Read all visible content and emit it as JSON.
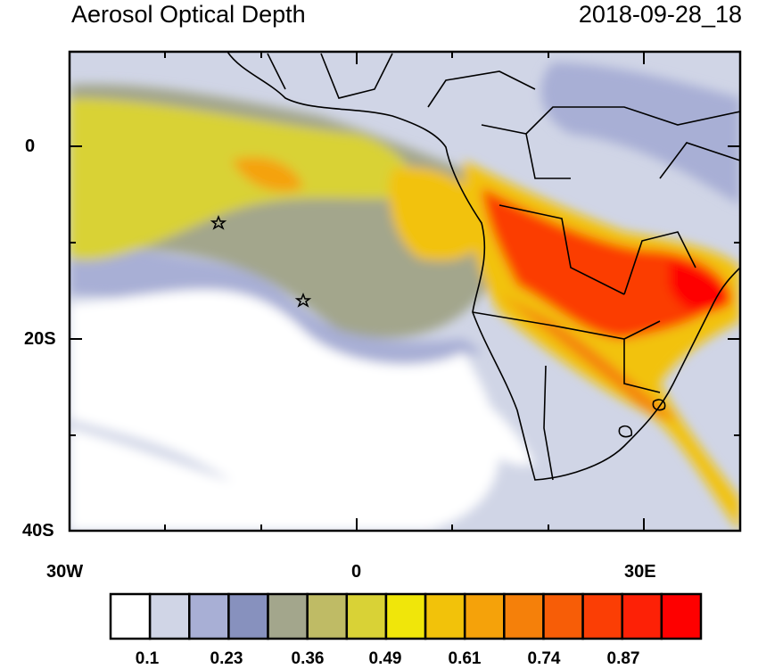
{
  "title_left": "Aerosol Optical Depth",
  "title_right": "2018-09-28_18",
  "lat_ticks": [
    "0",
    "20S",
    "40S"
  ],
  "lon_ticks": [
    "30W",
    "0",
    "30E"
  ],
  "colorbar": {
    "labels": [
      "0.1",
      "0.23",
      "0.36",
      "0.49",
      "0.61",
      "0.74",
      "0.87"
    ],
    "colors": [
      "#ffffff",
      "#d0d5e6",
      "#a8afd5",
      "#8791be",
      "#a3a68c",
      "#bfbb65",
      "#d9d236",
      "#f0e60a",
      "#f2c20a",
      "#f5a20a",
      "#f5800a",
      "#f75d07",
      "#fb3e05",
      "#fd2106",
      "#fe0000"
    ]
  },
  "markers": [
    "star-marker",
    "star-marker"
  ]
}
